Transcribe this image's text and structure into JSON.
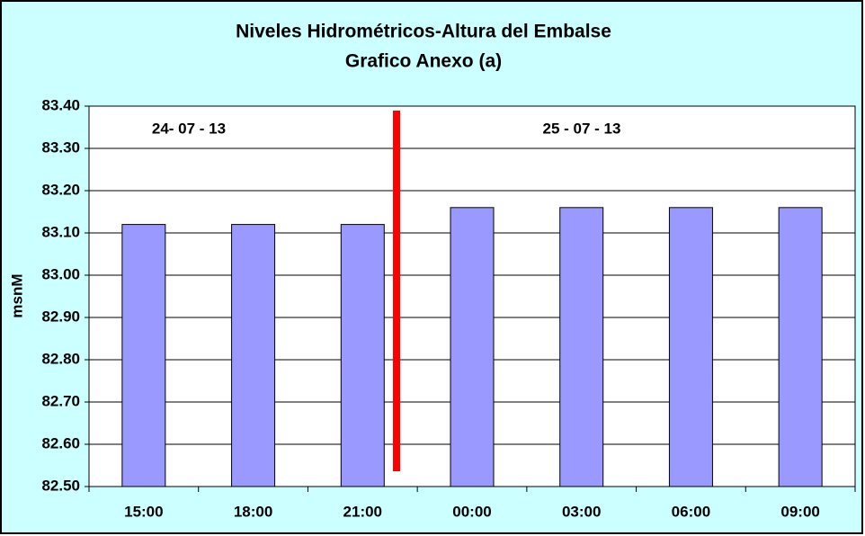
{
  "chart_data": {
    "type": "bar",
    "title": "Niveles Hidrométricos-Altura del Embalse",
    "subtitle": "Grafico Anexo (a)",
    "y_label": "msnM",
    "annotations": [
      "24- 07 - 13",
      "25 - 07 - 13"
    ],
    "categories": [
      "15:00",
      "18:00",
      "21:00",
      "00:00",
      "03:00",
      "06:00",
      "09:00"
    ],
    "values": [
      83.12,
      83.12,
      83.12,
      83.16,
      83.16,
      83.16,
      83.16
    ],
    "color": "#9999ff",
    "ylim": [
      82.5,
      83.4
    ],
    "yticks": [
      {
        "value": 82.5,
        "label": "82.50"
      },
      {
        "value": 82.6,
        "label": "82.60"
      },
      {
        "value": 82.7,
        "label": "82.70"
      },
      {
        "value": 82.8,
        "label": "82.80"
      },
      {
        "value": 82.9,
        "label": "82.90"
      },
      {
        "value": 83.0,
        "label": "83.00"
      },
      {
        "value": 83.1,
        "label": "83.10"
      },
      {
        "value": 83.2,
        "label": "83.20"
      },
      {
        "value": 83.3,
        "label": "83.30"
      },
      {
        "value": 83.4,
        "label": "83.40"
      }
    ],
    "grid": true
  }
}
